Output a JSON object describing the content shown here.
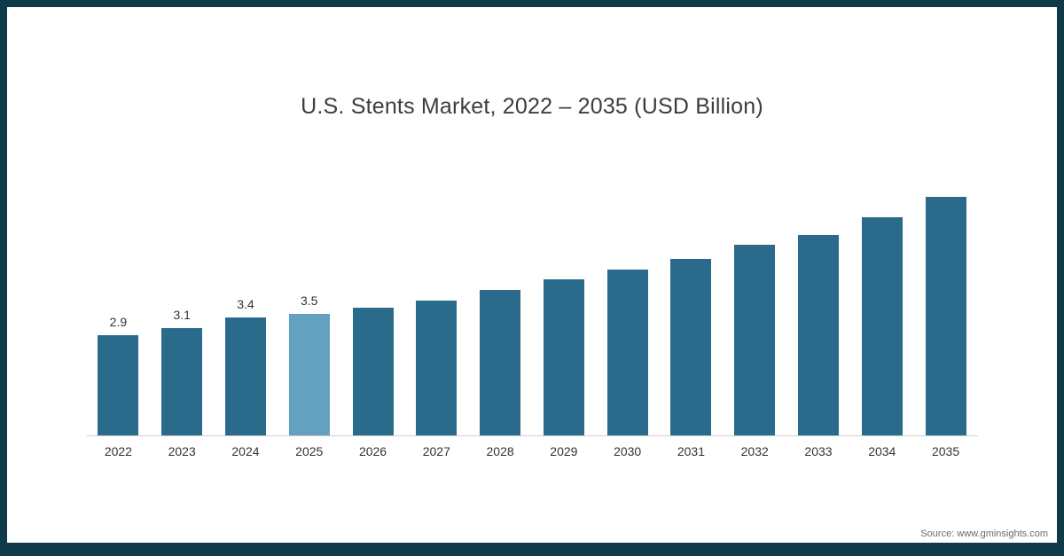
{
  "title": "U.S. Stents Market, 2022 – 2035 (USD Billion)",
  "source": "Source: www.gminsights.com",
  "colors": {
    "bar": "#2a6b8c",
    "highlight": "#64a1c0",
    "frame_border": "#0e3a4a"
  },
  "chart_data": {
    "type": "bar",
    "title": "U.S. Stents Market, 2022 – 2035 (USD Billion)",
    "categories": [
      "2022",
      "2023",
      "2024",
      "2025",
      "2026",
      "2027",
      "2028",
      "2029",
      "2030",
      "2031",
      "2032",
      "2033",
      "2034",
      "2035"
    ],
    "values": [
      2.9,
      3.1,
      3.4,
      3.5,
      3.7,
      3.9,
      4.2,
      4.5,
      4.8,
      5.1,
      5.5,
      5.8,
      6.3,
      6.9
    ],
    "data_labels": [
      "2.9",
      "3.1",
      "3.4",
      "3.5",
      "",
      "",
      "",
      "",
      "",
      "",
      "",
      "",
      "",
      ""
    ],
    "highlight_category": "2025",
    "xlabel": "",
    "ylabel": "",
    "ylim": [
      0,
      7.5
    ],
    "grid": false,
    "legend": false
  }
}
